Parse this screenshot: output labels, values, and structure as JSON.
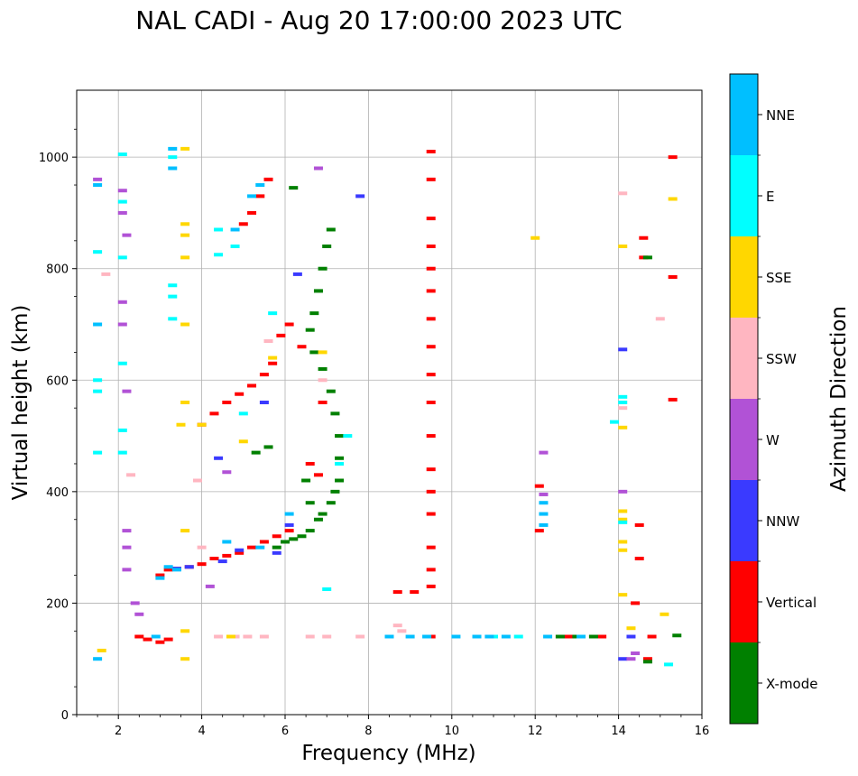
{
  "chart_data": {
    "type": "scatter",
    "title": "NAL CADI - Aug 20 17:00:00 2023 UTC",
    "xlabel": "Frequency (MHz)",
    "ylabel": "Virtual height (km)",
    "xlim": [
      1,
      16
    ],
    "ylim": [
      0,
      1120
    ],
    "x_ticks": [
      2,
      4,
      6,
      8,
      10,
      12,
      14,
      16
    ],
    "y_ticks": [
      0,
      200,
      400,
      600,
      800,
      1000
    ],
    "grid": true,
    "colorbar": {
      "label": "Azimuth Direction",
      "categories": [
        {
          "name": "X-mode",
          "color": "#008000"
        },
        {
          "name": "Vertical",
          "color": "#ff0000"
        },
        {
          "name": "NNW",
          "color": "#3a3aff"
        },
        {
          "name": "W",
          "color": "#b152d6"
        },
        {
          "name": "SSW",
          "color": "#ffb6c1"
        },
        {
          "name": "SSE",
          "color": "#ffd700"
        },
        {
          "name": "E",
          "color": "#00ffff"
        },
        {
          "name": "NNE",
          "color": "#00bfff"
        }
      ]
    },
    "segments": [
      {
        "name": "Vertical",
        "points": [
          [
            2.5,
            140
          ],
          [
            2.7,
            135
          ],
          [
            3.0,
            130
          ],
          [
            3.2,
            135
          ],
          [
            3.0,
            250
          ],
          [
            3.2,
            260
          ],
          [
            3.4,
            262
          ],
          [
            3.7,
            265
          ],
          [
            4.0,
            270
          ],
          [
            4.3,
            280
          ],
          [
            4.6,
            285
          ],
          [
            4.9,
            290
          ],
          [
            5.2,
            300
          ],
          [
            5.5,
            310
          ],
          [
            5.8,
            320
          ],
          [
            6.1,
            330
          ],
          [
            4.0,
            520
          ],
          [
            4.3,
            540
          ],
          [
            4.6,
            560
          ],
          [
            4.9,
            575
          ],
          [
            5.2,
            590
          ],
          [
            5.5,
            610
          ],
          [
            5.7,
            630
          ],
          [
            5.9,
            680
          ],
          [
            6.1,
            700
          ],
          [
            6.4,
            660
          ],
          [
            6.6,
            450
          ],
          [
            6.8,
            430
          ],
          [
            6.9,
            560
          ],
          [
            5.0,
            880
          ],
          [
            5.2,
            900
          ],
          [
            5.4,
            930
          ],
          [
            5.6,
            960
          ],
          [
            9.5,
            1010
          ],
          [
            9.5,
            960
          ],
          [
            9.5,
            890
          ],
          [
            9.5,
            840
          ],
          [
            9.5,
            800
          ],
          [
            9.5,
            760
          ],
          [
            9.5,
            710
          ],
          [
            9.5,
            660
          ],
          [
            9.5,
            610
          ],
          [
            9.5,
            560
          ],
          [
            9.5,
            500
          ],
          [
            9.5,
            440
          ],
          [
            9.5,
            400
          ],
          [
            9.5,
            360
          ],
          [
            9.5,
            300
          ],
          [
            9.5,
            260
          ],
          [
            9.5,
            230
          ],
          [
            9.5,
            140
          ],
          [
            8.7,
            220
          ],
          [
            9.1,
            220
          ],
          [
            12.1,
            330
          ],
          [
            12.1,
            410
          ],
          [
            12.6,
            140
          ],
          [
            12.8,
            140
          ],
          [
            13.6,
            140
          ],
          [
            14.6,
            820
          ],
          [
            14.6,
            855
          ],
          [
            15.3,
            1000
          ],
          [
            15.3,
            785
          ],
          [
            15.3,
            565
          ],
          [
            14.4,
            200
          ],
          [
            14.5,
            280
          ],
          [
            14.5,
            340
          ],
          [
            14.7,
            100
          ],
          [
            14.8,
            140
          ]
        ]
      },
      {
        "name": "X-mode",
        "points": [
          [
            6.2,
            945
          ],
          [
            7.1,
            870
          ],
          [
            7.0,
            840
          ],
          [
            6.9,
            800
          ],
          [
            6.8,
            760
          ],
          [
            6.7,
            720
          ],
          [
            6.6,
            690
          ],
          [
            6.7,
            650
          ],
          [
            6.9,
            620
          ],
          [
            7.1,
            580
          ],
          [
            7.2,
            540
          ],
          [
            7.3,
            500
          ],
          [
            7.3,
            460
          ],
          [
            7.3,
            420
          ],
          [
            7.2,
            400
          ],
          [
            7.1,
            380
          ],
          [
            6.9,
            360
          ],
          [
            6.8,
            350
          ],
          [
            6.6,
            330
          ],
          [
            6.4,
            320
          ],
          [
            6.2,
            315
          ],
          [
            6.0,
            310
          ],
          [
            5.8,
            300
          ],
          [
            6.5,
            420
          ],
          [
            6.6,
            380
          ],
          [
            5.3,
            470
          ],
          [
            5.6,
            480
          ],
          [
            12.6,
            140
          ],
          [
            13.0,
            140
          ],
          [
            13.4,
            140
          ],
          [
            14.7,
            820
          ],
          [
            14.7,
            95
          ],
          [
            15.4,
            142
          ]
        ]
      },
      {
        "name": "NNW",
        "points": [
          [
            5.8,
            290
          ],
          [
            4.9,
            295
          ],
          [
            4.5,
            275
          ],
          [
            3.4,
            262
          ],
          [
            6.1,
            340
          ],
          [
            6.3,
            790
          ],
          [
            4.4,
            460
          ],
          [
            5.5,
            560
          ],
          [
            14.1,
            655
          ],
          [
            14.3,
            140
          ],
          [
            14.1,
            100
          ],
          [
            7.8,
            930
          ],
          [
            3.7,
            265
          ]
        ]
      },
      {
        "name": "W",
        "points": [
          [
            1.5,
            960
          ],
          [
            2.1,
            940
          ],
          [
            2.1,
            900
          ],
          [
            2.2,
            860
          ],
          [
            2.1,
            740
          ],
          [
            2.1,
            700
          ],
          [
            2.2,
            580
          ],
          [
            2.2,
            330
          ],
          [
            2.2,
            300
          ],
          [
            2.2,
            260
          ],
          [
            2.4,
            200
          ],
          [
            2.5,
            180
          ],
          [
            4.2,
            230
          ],
          [
            6.8,
            980
          ],
          [
            12.2,
            470
          ],
          [
            12.2,
            395
          ],
          [
            14.1,
            400
          ],
          [
            14.3,
            100
          ],
          [
            14.4,
            110
          ],
          [
            4.6,
            435
          ]
        ]
      },
      {
        "name": "SSW",
        "points": [
          [
            1.7,
            790
          ],
          [
            2.3,
            430
          ],
          [
            4.4,
            140
          ],
          [
            4.8,
            140
          ],
          [
            5.1,
            140
          ],
          [
            5.5,
            140
          ],
          [
            6.6,
            140
          ],
          [
            7.0,
            140
          ],
          [
            7.8,
            140
          ],
          [
            8.7,
            160
          ],
          [
            8.8,
            150
          ],
          [
            4.0,
            300
          ],
          [
            14.1,
            935
          ],
          [
            14.1,
            550
          ],
          [
            15.0,
            710
          ],
          [
            3.9,
            420
          ],
          [
            5.6,
            670
          ],
          [
            6.9,
            600
          ]
        ]
      },
      {
        "name": "SSE",
        "points": [
          [
            1.6,
            115
          ],
          [
            3.6,
            1015
          ],
          [
            3.6,
            880
          ],
          [
            3.6,
            860
          ],
          [
            3.6,
            820
          ],
          [
            3.6,
            700
          ],
          [
            3.6,
            560
          ],
          [
            3.5,
            520
          ],
          [
            3.6,
            330
          ],
          [
            3.6,
            100
          ],
          [
            3.6,
            150
          ],
          [
            4.7,
            140
          ],
          [
            4.0,
            520
          ],
          [
            5.0,
            490
          ],
          [
            5.7,
            640
          ],
          [
            6.9,
            650
          ],
          [
            12.0,
            855
          ],
          [
            14.1,
            840
          ],
          [
            14.1,
            515
          ],
          [
            14.1,
            365
          ],
          [
            14.1,
            350
          ],
          [
            14.1,
            310
          ],
          [
            14.1,
            295
          ],
          [
            14.1,
            215
          ],
          [
            15.3,
            925
          ],
          [
            15.1,
            180
          ],
          [
            14.3,
            155
          ]
        ]
      },
      {
        "name": "E",
        "points": [
          [
            1.5,
            830
          ],
          [
            1.5,
            600
          ],
          [
            1.5,
            580
          ],
          [
            1.5,
            470
          ],
          [
            2.1,
            1005
          ],
          [
            2.1,
            920
          ],
          [
            2.1,
            820
          ],
          [
            2.1,
            630
          ],
          [
            2.1,
            510
          ],
          [
            2.1,
            470
          ],
          [
            3.3,
            1000
          ],
          [
            3.3,
            770
          ],
          [
            3.3,
            750
          ],
          [
            3.3,
            710
          ],
          [
            4.4,
            825
          ],
          [
            4.4,
            870
          ],
          [
            4.8,
            840
          ],
          [
            5.7,
            720
          ],
          [
            5.0,
            540
          ],
          [
            7.3,
            450
          ],
          [
            7.5,
            500
          ],
          [
            7.0,
            225
          ],
          [
            14.1,
            570
          ],
          [
            14.1,
            560
          ],
          [
            13.9,
            525
          ],
          [
            15.2,
            90
          ],
          [
            11.0,
            140
          ],
          [
            11.6,
            140
          ],
          [
            14.1,
            345
          ]
        ]
      },
      {
        "name": "NNE",
        "points": [
          [
            1.5,
            950
          ],
          [
            1.5,
            700
          ],
          [
            1.5,
            100
          ],
          [
            3.3,
            1015
          ],
          [
            3.3,
            980
          ],
          [
            3.0,
            245
          ],
          [
            3.2,
            265
          ],
          [
            3.4,
            260
          ],
          [
            5.4,
            950
          ],
          [
            5.2,
            930
          ],
          [
            4.8,
            870
          ],
          [
            4.6,
            310
          ],
          [
            5.4,
            300
          ],
          [
            6.1,
            360
          ],
          [
            8.5,
            140
          ],
          [
            9.0,
            140
          ],
          [
            9.4,
            140
          ],
          [
            10.1,
            140
          ],
          [
            10.6,
            140
          ],
          [
            10.9,
            140
          ],
          [
            11.3,
            140
          ],
          [
            12.2,
            380
          ],
          [
            12.2,
            360
          ],
          [
            12.2,
            340
          ],
          [
            12.3,
            140
          ],
          [
            13.1,
            140
          ],
          [
            2.9,
            140
          ]
        ]
      }
    ]
  }
}
